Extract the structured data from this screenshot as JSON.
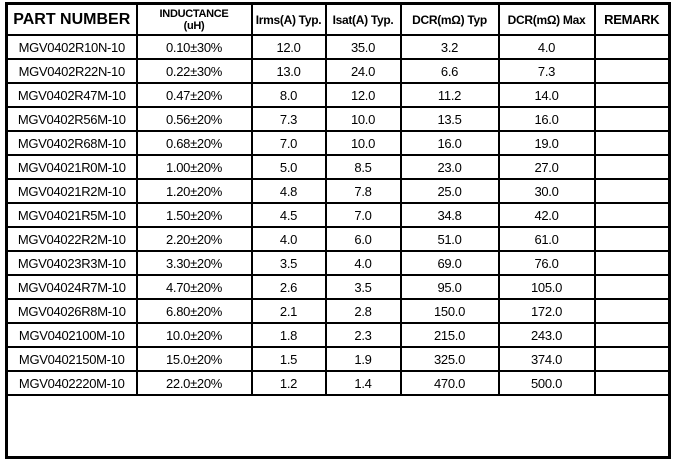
{
  "colors": {
    "border": "#000000",
    "background": "#ffffff",
    "text": "#000000"
  },
  "table": {
    "header": {
      "part_number": "PART NUMBER",
      "inductance_line1": "INDUCTANCE",
      "inductance_line2": "(uH)",
      "irms": "Irms(A) Typ.",
      "isat": "Isat(A) Typ.",
      "dcr_typ": "DCR(mΩ) Typ",
      "dcr_max": "DCR(mΩ) Max",
      "remark": "REMARK"
    },
    "rows": [
      {
        "part_number": "MGV0402R10N-10",
        "inductance": "0.10±30%",
        "irms": "12.0",
        "isat": "35.0",
        "dcr_typ": "3.2",
        "dcr_max": "4.0",
        "remark": ""
      },
      {
        "part_number": "MGV0402R22N-10",
        "inductance": "0.22±30%",
        "irms": "13.0",
        "isat": "24.0",
        "dcr_typ": "6.6",
        "dcr_max": "7.3",
        "remark": ""
      },
      {
        "part_number": "MGV0402R47M-10",
        "inductance": "0.47±20%",
        "irms": "8.0",
        "isat": "12.0",
        "dcr_typ": "11.2",
        "dcr_max": "14.0",
        "remark": ""
      },
      {
        "part_number": "MGV0402R56M-10",
        "inductance": "0.56±20%",
        "irms": "7.3",
        "isat": "10.0",
        "dcr_typ": "13.5",
        "dcr_max": "16.0",
        "remark": ""
      },
      {
        "part_number": "MGV0402R68M-10",
        "inductance": "0.68±20%",
        "irms": "7.0",
        "isat": "10.0",
        "dcr_typ": "16.0",
        "dcr_max": "19.0",
        "remark": ""
      },
      {
        "part_number": "MGV04021R0M-10",
        "inductance": "1.00±20%",
        "irms": "5.0",
        "isat": "8.5",
        "dcr_typ": "23.0",
        "dcr_max": "27.0",
        "remark": ""
      },
      {
        "part_number": "MGV04021R2M-10",
        "inductance": "1.20±20%",
        "irms": "4.8",
        "isat": "7.8",
        "dcr_typ": "25.0",
        "dcr_max": "30.0",
        "remark": ""
      },
      {
        "part_number": "MGV04021R5M-10",
        "inductance": "1.50±20%",
        "irms": "4.5",
        "isat": "7.0",
        "dcr_typ": "34.8",
        "dcr_max": "42.0",
        "remark": ""
      },
      {
        "part_number": "MGV04022R2M-10",
        "inductance": "2.20±20%",
        "irms": "4.0",
        "isat": "6.0",
        "dcr_typ": "51.0",
        "dcr_max": "61.0",
        "remark": ""
      },
      {
        "part_number": "MGV04023R3M-10",
        "inductance": "3.30±20%",
        "irms": "3.5",
        "isat": "4.0",
        "dcr_typ": "69.0",
        "dcr_max": "76.0",
        "remark": ""
      },
      {
        "part_number": "MGV04024R7M-10",
        "inductance": "4.70±20%",
        "irms": "2.6",
        "isat": "3.5",
        "dcr_typ": "95.0",
        "dcr_max": "105.0",
        "remark": ""
      },
      {
        "part_number": "MGV04026R8M-10",
        "inductance": "6.80±20%",
        "irms": "2.1",
        "isat": "2.8",
        "dcr_typ": "150.0",
        "dcr_max": "172.0",
        "remark": ""
      },
      {
        "part_number": "MGV0402100M-10",
        "inductance": "10.0±20%",
        "irms": "1.8",
        "isat": "2.3",
        "dcr_typ": "215.0",
        "dcr_max": "243.0",
        "remark": ""
      },
      {
        "part_number": "MGV0402150M-10",
        "inductance": "15.0±20%",
        "irms": "1.5",
        "isat": "1.9",
        "dcr_typ": "325.0",
        "dcr_max": "374.0",
        "remark": ""
      },
      {
        "part_number": "MGV0402220M-10",
        "inductance": "22.0±20%",
        "irms": "1.2",
        "isat": "1.4",
        "dcr_typ": "470.0",
        "dcr_max": "500.0",
        "remark": ""
      }
    ]
  }
}
